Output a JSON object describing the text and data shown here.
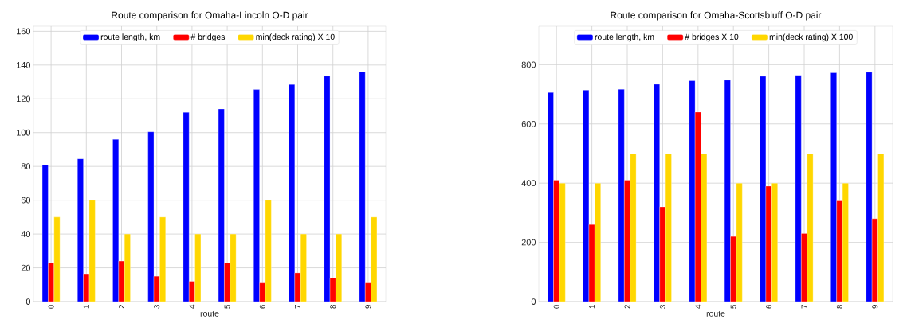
{
  "chart_data": [
    {
      "type": "bar",
      "title": "Route comparison for Omaha-Lincoln O-D pair",
      "xlabel": "route",
      "categories": [
        "0",
        "1",
        "2",
        "3",
        "4",
        "5",
        "6",
        "7",
        "8",
        "9"
      ],
      "series": [
        {
          "name": "route length, km",
          "color": "#0000ff",
          "values": [
            81,
            84.5,
            96,
            100.5,
            112,
            114,
            125.5,
            128.5,
            133.5,
            136
          ]
        },
        {
          "name": "# bridges",
          "color": "#ff0000",
          "values": [
            23,
            16,
            24,
            15,
            12,
            23,
            11,
            17,
            14,
            11
          ]
        },
        {
          "name": "min(deck rating) X 10",
          "color": "#ffd700",
          "values": [
            50,
            60,
            40,
            50,
            40,
            40,
            60,
            40,
            40,
            50
          ]
        }
      ],
      "ylim": [
        0,
        163
      ],
      "yticks": [
        0,
        20,
        40,
        60,
        80,
        100,
        120,
        140,
        160
      ],
      "grid": true,
      "legend": "top"
    },
    {
      "type": "bar",
      "title": "Route comparison for Omaha-Scottsbluff O-D pair",
      "xlabel": "route",
      "categories": [
        "0",
        "1",
        "2",
        "3",
        "4",
        "5",
        "6",
        "7",
        "8",
        "9"
      ],
      "series": [
        {
          "name": "route length, km",
          "color": "#0000ff",
          "values": [
            706,
            714,
            717,
            734,
            746,
            748,
            761,
            764,
            773,
            775
          ]
        },
        {
          "name": "# bridges X 10",
          "color": "#ff0000",
          "values": [
            410,
            260,
            410,
            320,
            640,
            220,
            390,
            230,
            340,
            280
          ]
        },
        {
          "name": "min(deck rating) X 100",
          "color": "#ffd700",
          "values": [
            400,
            400,
            500,
            500,
            500,
            400,
            400,
            500,
            400,
            500
          ]
        }
      ],
      "ylim": [
        0,
        930
      ],
      "yticks": [
        0,
        200,
        400,
        600,
        800
      ],
      "grid": true,
      "legend": "top"
    }
  ]
}
